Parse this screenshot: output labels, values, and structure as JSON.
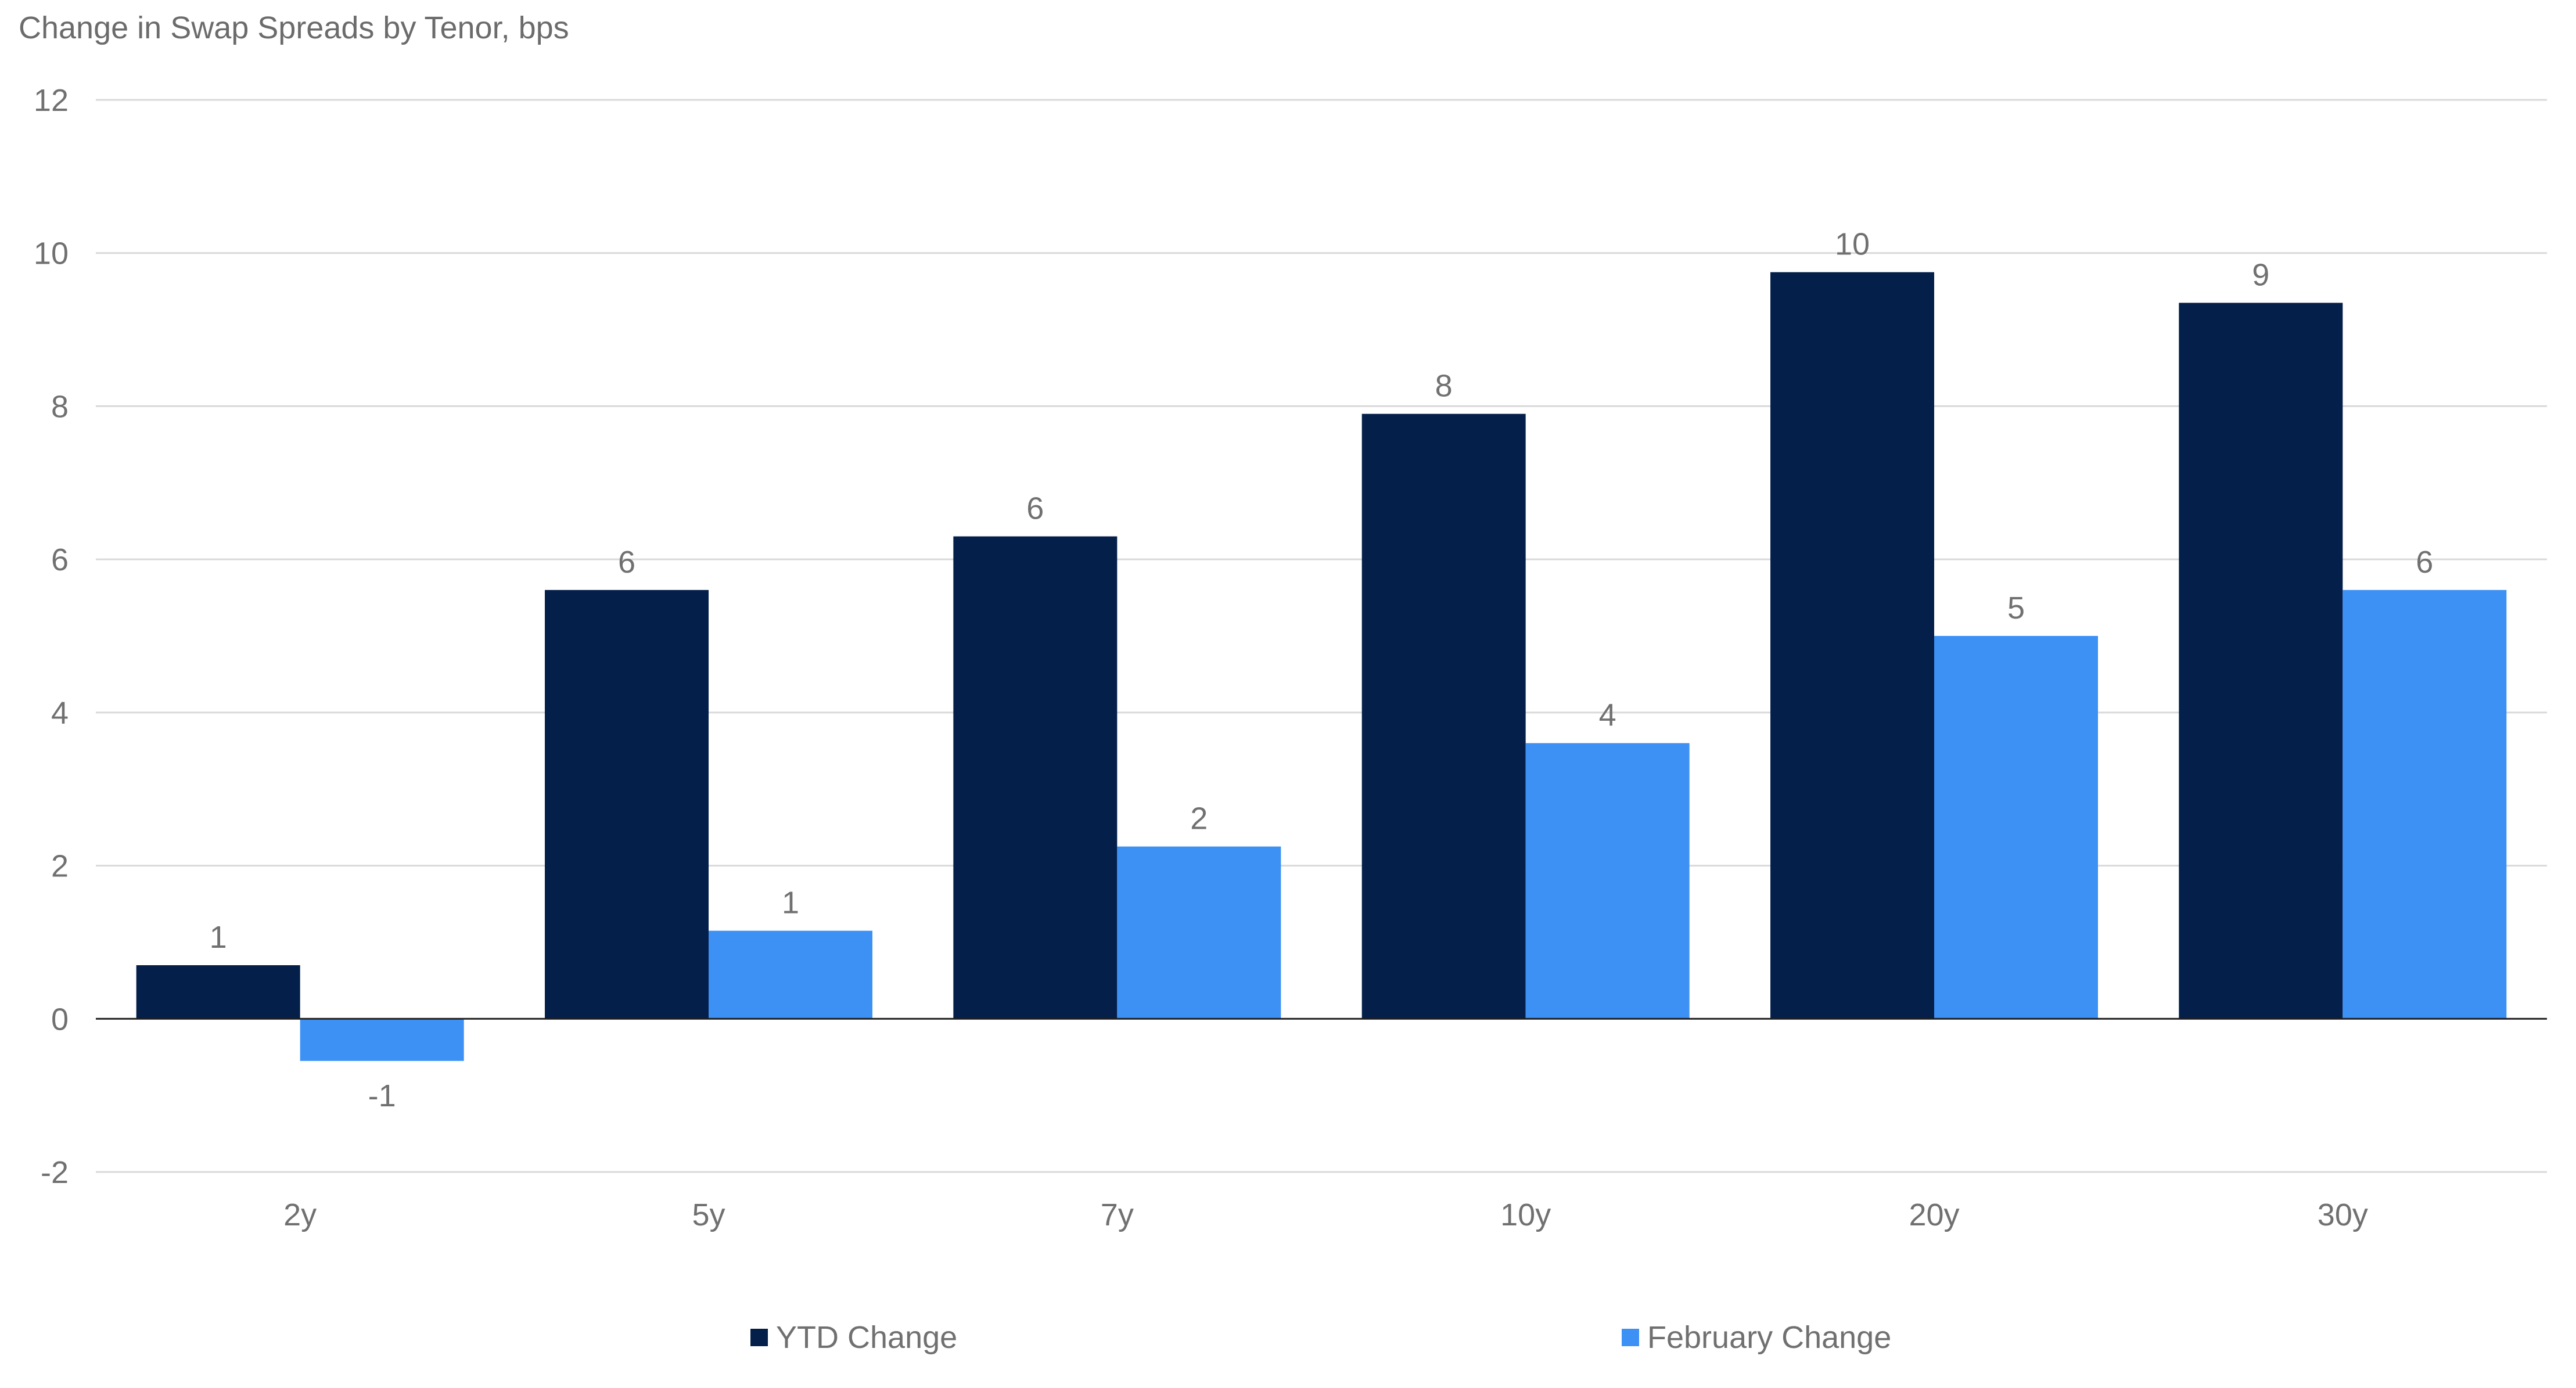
{
  "chart_data": {
    "type": "bar",
    "title": "Change in Swap Spreads by Tenor, bps",
    "xlabel": "",
    "ylabel": "",
    "categories": [
      "2y",
      "5y",
      "7y",
      "10y",
      "20y",
      "30y"
    ],
    "series": [
      {
        "name": "YTD Change",
        "color": "#031f4a",
        "values": [
          0.7,
          5.6,
          6.3,
          7.9,
          9.75,
          9.35
        ],
        "labels": [
          "1",
          "6",
          "6",
          "8",
          "10",
          "9"
        ]
      },
      {
        "name": "February Change",
        "color": "#3d91f5",
        "values": [
          -0.55,
          1.15,
          2.25,
          3.6,
          5.0,
          5.6
        ],
        "labels": [
          "-1",
          "1",
          "2",
          "4",
          "5",
          "6"
        ]
      }
    ],
    "ylim": [
      -2,
      12
    ],
    "yticks": [
      -2,
      0,
      2,
      4,
      6,
      8,
      10,
      12
    ],
    "grid": true,
    "legend_position": "bottom"
  }
}
